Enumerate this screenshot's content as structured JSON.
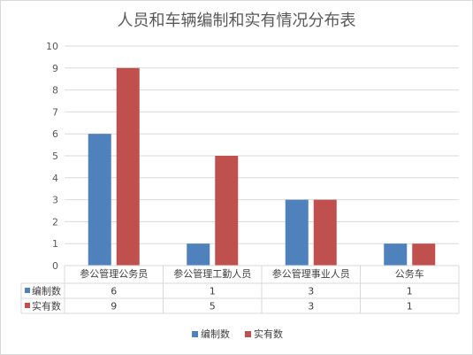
{
  "chart_data": {
    "type": "bar",
    "title": "人员和车辆编制和实有情况分布表",
    "categories": [
      "参公管理公务员",
      "参公管理工勤人员",
      "参公管理事业人员",
      "公务车"
    ],
    "series": [
      {
        "name": "编制数",
        "values": [
          6,
          1,
          3,
          1
        ],
        "color": "#4f81bd"
      },
      {
        "name": "实有数",
        "values": [
          9,
          5,
          3,
          1
        ],
        "color": "#c0504d"
      }
    ],
    "xlabel": "",
    "ylabel": "",
    "ylim": [
      0,
      10
    ],
    "yticks": [
      "0",
      "1",
      "2",
      "3",
      "4",
      "5",
      "6",
      "7",
      "8",
      "9",
      "10"
    ],
    "grid": true,
    "legend_position": "bottom",
    "data_table": true
  }
}
